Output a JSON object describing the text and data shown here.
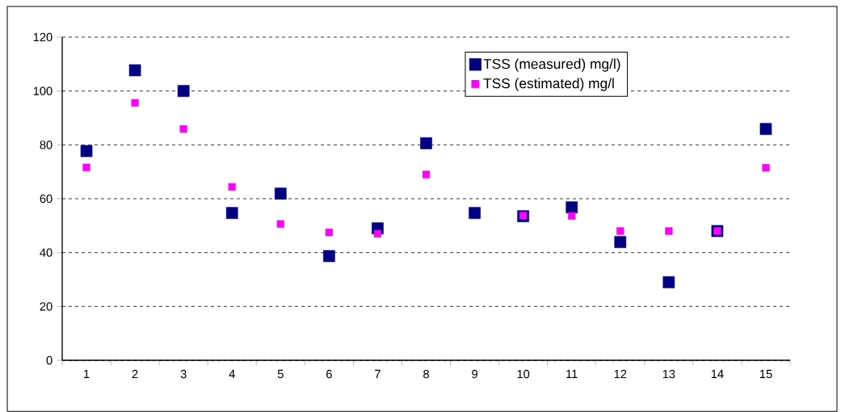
{
  "chart_data": {
    "type": "scatter",
    "categories": [
      "1",
      "2",
      "3",
      "4",
      "5",
      "6",
      "7",
      "8",
      "9",
      "10",
      "11",
      "12",
      "13",
      "14",
      "15"
    ],
    "series": [
      {
        "name": "TSS (measured) mg/l)",
        "color": "#000080",
        "values": [
          77.7,
          107.7,
          100,
          54.7,
          61.9,
          38.7,
          49,
          80.6,
          54.7,
          53.5,
          56.8,
          43.9,
          29,
          48,
          85.9
        ]
      },
      {
        "name": "TSS (estimated) mg/l",
        "color": "#ff00ff",
        "values": [
          71.6,
          95.6,
          85.9,
          64.4,
          50.6,
          47.5,
          47,
          69,
          null,
          53.7,
          53.6,
          48,
          48,
          48,
          71.5
        ]
      }
    ],
    "ylim": [
      0,
      120
    ],
    "yticks": [
      0,
      20,
      40,
      60,
      80,
      100,
      120
    ],
    "grid": "y",
    "legend": "top right",
    "marker": "square"
  }
}
